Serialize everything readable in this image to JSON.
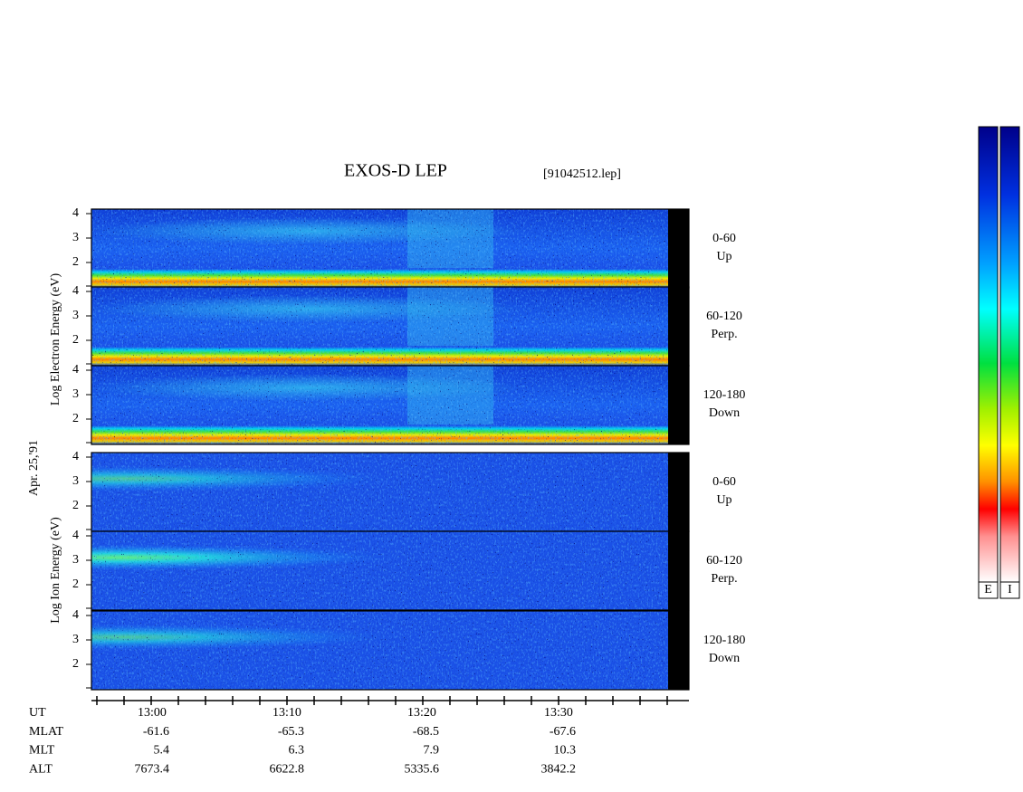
{
  "title": "EXOS-D LEP",
  "file": "[91042512.lep]",
  "date": "Apr. 25,'91",
  "electron_axis": "Log Electron Energy (eV)",
  "ion_axis": "Log Ion Energy (eV)",
  "yticks": [
    "4",
    "3",
    "2"
  ],
  "pitch_angles": [
    {
      "range": "0-60",
      "dir": "Up"
    },
    {
      "range": "60-120",
      "dir": "Perp."
    },
    {
      "range": "120-180",
      "dir": "Down"
    }
  ],
  "orbit": [
    {
      "label": "UT",
      "values": [
        "13:00",
        "13:10",
        "13:20",
        "13:30"
      ]
    },
    {
      "label": "MLAT",
      "values": [
        "-61.6",
        "-65.3",
        "-68.5",
        "-67.6"
      ]
    },
    {
      "label": "MLT",
      "values": [
        "5.4",
        "6.3",
        "7.9",
        "10.3"
      ]
    },
    {
      "label": "ALT",
      "values": [
        "7673.4",
        "6622.8",
        "5335.6",
        "3842.2"
      ]
    }
  ],
  "colorbars": [
    "E",
    "I"
  ]
}
